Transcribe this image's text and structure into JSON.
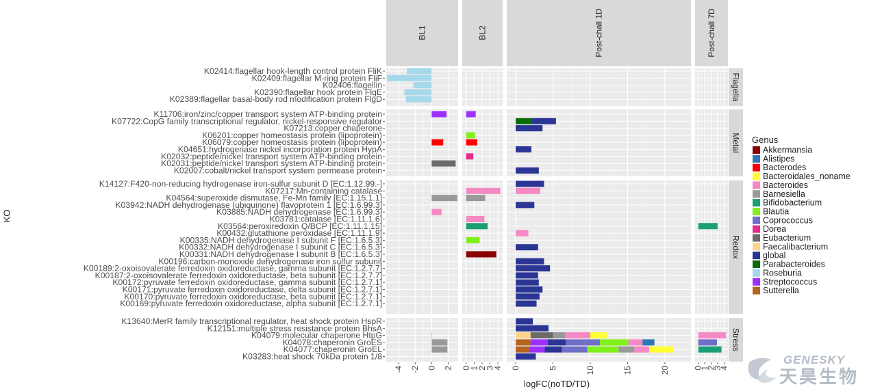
{
  "chart_data": {
    "type": "bar",
    "orientation": "horizontal",
    "xlabel": "logFC(noTD/TD)",
    "ylabel": "KO",
    "legend": {
      "title": "Genus",
      "placement": "right"
    },
    "genus_colors": {
      "Akkermansia": "#8b0000",
      "Alistipes": "#2e75b6",
      "Bacterodes": "#ff0000",
      "Bacteroidales_noname": "#ffff33",
      "Bacteroides": "#f589c4",
      "Barnesiella": "#999999",
      "Bifidobacterium": "#1a9e75",
      "Blautia": "#80ef1a",
      "Coprococcus": "#6f6fc8",
      "Dorea": "#e7298a",
      "Eubacterium": "#6b6b6b",
      "Faecalibacterium": "#fdd38b",
      "global": "#2b3594",
      "Parabacteroides": "#0a6b0a",
      "Roseburia": "#a6d8ec",
      "Streptococcus": "#9b30ff",
      "Sutterella": "#b5651d"
    },
    "panels": [
      {
        "id": "BL1",
        "label": "BL1",
        "xlim": [
          -5.5,
          3.2
        ],
        "ticks": [
          -4,
          -2,
          0,
          2
        ]
      },
      {
        "id": "BL2",
        "label": "BL2",
        "xlim": [
          -0.5,
          4.6
        ],
        "ticks": [
          0,
          1,
          2,
          3,
          4
        ]
      },
      {
        "id": "P1",
        "label": "Post-chall 1D",
        "xlim": [
          -1.2,
          23.5
        ],
        "ticks": [
          0,
          5,
          10,
          15,
          20
        ]
      },
      {
        "id": "P7",
        "label": "Post-chall 7D",
        "xlim": [
          -0.5,
          4.6
        ],
        "ticks": [
          0,
          1,
          2,
          3,
          4
        ]
      }
    ],
    "facets": [
      {
        "label": "Flagella",
        "rows": [
          {
            "ko": "K02414:flagellar hook-length control protein FliK",
            "bars": {
              "BL1": [
                [
                  "Roseburia",
                  -3.0
                ]
              ]
            }
          },
          {
            "ko": "K02409:flagellar M-ring protein FliF",
            "bars": {
              "BL1": [
                [
                  "Roseburia",
                  -5.4
                ]
              ]
            }
          },
          {
            "ko": "K02406:flagellin",
            "bars": {
              "BL1": [
                [
                  "Roseburia",
                  -2.2
                ]
              ]
            }
          },
          {
            "ko": "K02390:flagellar hook protein FlgE",
            "bars": {
              "BL1": [
                [
                  "Roseburia",
                  -3.3
                ]
              ]
            }
          },
          {
            "ko": "K02389:flagellar basal-body rod modification protein FlgD",
            "bars": {
              "BL1": [
                [
                  "Roseburia",
                  -3.1
                ]
              ]
            }
          }
        ]
      },
      {
        "label": "Metal",
        "rows": [
          {
            "ko": "K11706:iron/zinc/copper transport system ATP-binding protein",
            "bars": {
              "BL1": [
                [
                  "Streptococcus",
                  1.8
                ]
              ],
              "BL2": [
                [
                  "Streptococcus",
                  1.2
                ]
              ]
            }
          },
          {
            "ko": "K07722:CopG family transcriptional regulator, nickel-responsive regulator",
            "bars": {
              "P1": [
                [
                  "Parabacteroides",
                  2.2
                ],
                [
                  "global",
                  3.2
                ]
              ]
            }
          },
          {
            "ko": "K07213:copper chaperone",
            "bars": {
              "P1": [
                [
                  "global",
                  3.6
                ]
              ]
            }
          },
          {
            "ko": "K06201:copper homeostasis protein (lipoprotein)",
            "bars": {
              "BL2": [
                [
                  "Blautia",
                  1.1
                ]
              ]
            }
          },
          {
            "ko": "K06079:copper homeostasis protein (lipoprotein)",
            "bars": {
              "BL1": [
                [
                  "Bacterodes",
                  1.4
                ]
              ],
              "BL2": [
                [
                  "Bacterodes",
                  1.4
                ]
              ]
            }
          },
          {
            "ko": "K04651:hydrogenase nickel incorporation protein HypA",
            "bars": {
              "P1": [
                [
                  "global",
                  2.1
                ]
              ]
            }
          },
          {
            "ko": "K02032:peptide/nickel transport system ATP-binding protein",
            "bars": {
              "BL2": [
                [
                  "Dorea",
                  0.9
                ]
              ]
            }
          },
          {
            "ko": "K02031:peptide/nickel transport system ATP-binding protein",
            "bars": {
              "BL1": [
                [
                  "Eubacterium",
                  2.9
                ]
              ]
            }
          },
          {
            "ko": "K02007:cobalt/nickel transport system permease protein",
            "bars": {
              "P1": [
                [
                  "global",
                  3.1
                ]
              ]
            }
          }
        ]
      },
      {
        "label": "Redox",
        "rows": [
          {
            "ko": "K14127:F420-non-reducing hydrogenase iron-sulfur subunit D [EC:1.12.99.-]",
            "bars": {
              "P1": [
                [
                  "global",
                  3.8
                ]
              ]
            }
          },
          {
            "ko": "K07217:Mn-containing catalase",
            "bars": {
              "BL2": [
                [
                  "Bacteroides",
                  4.3
                ]
              ],
              "P1": [
                [
                  "Bacteroides",
                  3.3
                ]
              ]
            }
          },
          {
            "ko": "K04564:superoxide dismutase, Fe-Mn family [EC:1.15.1.1]",
            "bars": {
              "BL1": [
                [
                  "Barnesiella",
                  3.1
                ]
              ],
              "BL2": [
                [
                  "Barnesiella",
                  2.4
                ]
              ]
            }
          },
          {
            "ko": "K03942:NADH dehydrogenase (ubiquinone) flavoprotein 1 [EC:1.6.99.3]",
            "bars": {
              "P1": [
                [
                  "global",
                  2.5
                ]
              ]
            }
          },
          {
            "ko": "K03885:NADH dehydrogenase [EC:1.6.99.3]",
            "bars": {
              "BL1": [
                [
                  "Bacteroides",
                  1.2
                ]
              ]
            }
          },
          {
            "ko": "K03781:catalase [EC:1.11.1.6]",
            "bars": {
              "BL2": [
                [
                  "Bacteroides",
                  2.3
                ]
              ]
            }
          },
          {
            "ko": "K03564:peroxiredoxin Q/BCP [EC:1.11.1.15]",
            "bars": {
              "BL2": [
                [
                  "Bifidobacterium",
                  2.7
                ]
              ],
              "P7": [
                [
                  "Bifidobacterium",
                  3.0
                ]
              ]
            }
          },
          {
            "ko": "K00432:glutathione peroxidase [EC:1.11.1.9]",
            "bars": {
              "P1": [
                [
                  "Bacteroides",
                  1.7
                ]
              ]
            }
          },
          {
            "ko": "K00335:NADH dehydrogenase I subunit F [EC:1.6.5.3]",
            "bars": {
              "BL2": [
                [
                  "Blautia",
                  1.7
                ]
              ]
            }
          },
          {
            "ko": "K00332:NADH dehydrogenase I subunit C [EC:1.6.5.3]",
            "bars": {
              "P1": [
                [
                  "global",
                  3.0
                ]
              ]
            }
          },
          {
            "ko": "K00331:NADH dehydrogenase I subunit B [EC:1.6.5.3]",
            "bars": {
              "BL2": [
                [
                  "Akkermansia",
                  3.8
                ]
              ]
            }
          },
          {
            "ko": "K00196:carbon-monoxide dehydrogenase iron sulfur subunit",
            "bars": {
              "P1": [
                [
                  "global",
                  3.8
                ]
              ]
            }
          },
          {
            "ko": "K00189:2-oxoisovalerate ferredoxin oxidoreductase, gamma subunit [EC:1.2.7.7]",
            "bars": {
              "P1": [
                [
                  "global",
                  4.6
                ]
              ]
            }
          },
          {
            "ko": "K00187:2-oxoisovalerate ferredoxin oxidoreductase, beta subunit [EC:1.2.7.7]",
            "bars": {
              "P1": [
                [
                  "global",
                  3.0
                ]
              ]
            }
          },
          {
            "ko": "K00172:pyruvate ferredoxin oxidoreductase, gamma subunit [EC:1.2.7.1]",
            "bars": {
              "P1": [
                [
                  "global",
                  3.1
                ]
              ]
            }
          },
          {
            "ko": "K00171:pyruvate ferredoxin oxidoreductase, delta subunit [EC:1.2.7.1]",
            "bars": {
              "P1": [
                [
                  "global",
                  3.6
                ]
              ]
            }
          },
          {
            "ko": "K00170:pyruvate ferredoxin oxidoreductase, beta subunit [EC:1.2.7.1]",
            "bars": {
              "P1": [
                [
                  "global",
                  3.2
                ]
              ]
            }
          },
          {
            "ko": "K00169:pyruvate ferredoxin oxidoreductase, alpha subunit [EC:1.2.7.1]",
            "bars": {
              "P1": [
                [
                  "global",
                  2.8
                ]
              ]
            }
          }
        ]
      },
      {
        "label": "Stress",
        "rows": [
          {
            "ko": "K13640:MerR family transcriptional regulator, heat shock protein HspR",
            "bars": {
              "P1": [
                [
                  "global",
                  2.3
                ]
              ]
            }
          },
          {
            "ko": "K12151:multiple stress resistance protein BhsA",
            "bars": {
              "P1": [
                [
                  "global",
                  4.4
                ]
              ]
            }
          },
          {
            "ko": "K04079:molecular chaperone HtpG",
            "bars": {
              "BL1": [
                [
                  "Barnesiella",
                  0.0
                ]
              ],
              "P1": [
                [
                  "Faecalibacterium",
                  2.0
                ],
                [
                  "Eubacterium",
                  3.0
                ],
                [
                  "Barnesiella",
                  1.6
                ],
                [
                  "Bacteroides",
                  3.4
                ],
                [
                  "Bacteroidales_noname",
                  2.2
                ]
              ],
              "P7": [
                [
                  "Bacteroides",
                  4.3
                ]
              ]
            }
          },
          {
            "ko": "K04078:chaperonin GroES",
            "bars": {
              "BL1": [
                [
                  "Barnesiella",
                  1.9
                ]
              ],
              "P1": [
                [
                  "Sutterella",
                  2.0
                ],
                [
                  "Streptococcus",
                  2.3
                ],
                [
                  "global",
                  2.4
                ],
                [
                  "Coprococcus",
                  4.6
                ],
                [
                  "Blautia",
                  3.8
                ],
                [
                  "Bacteroides",
                  1.9
                ],
                [
                  "Alistipes",
                  1.6
                ]
              ],
              "P7": [
                [
                  "Coprococcus",
                  2.9
                ]
              ]
            }
          },
          {
            "ko": "K04077:chaperonin GroEL",
            "bars": {
              "BL1": [
                [
                  "Barnesiella",
                  1.9
                ]
              ],
              "P1": [
                [
                  "Sutterella",
                  1.8
                ],
                [
                  "Streptococcus",
                  2.1
                ],
                [
                  "global",
                  2.3
                ],
                [
                  "Coprococcus",
                  3.4
                ],
                [
                  "Blautia",
                  4.2
                ],
                [
                  "Barnesiella",
                  2.1
                ],
                [
                  "Bacteroides",
                  2.0
                ],
                [
                  "Bacteroidales_noname",
                  3.2
                ]
              ],
              "P7": [
                [
                  "Bifidobacterium",
                  3.6
                ]
              ]
            }
          },
          {
            "ko": "K03283:heat shock 70kDa protein 1/8",
            "bars": {
              "P1": [
                [
                  "global",
                  2.7
                ]
              ]
            }
          }
        ]
      }
    ]
  },
  "watermark": {
    "brand_en": "GENESKY",
    "brand_cn": "天昊生物",
    "color": "#b4bcc6"
  }
}
